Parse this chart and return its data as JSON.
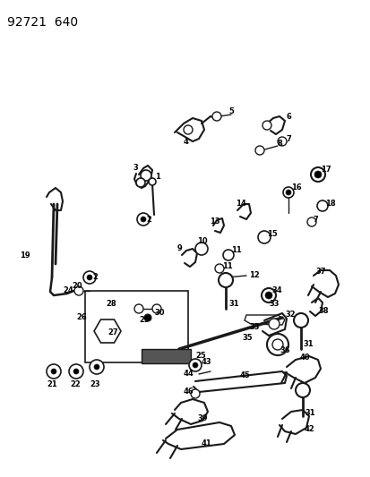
{
  "title": "92721  640",
  "background_color": "#ffffff",
  "line_color": "#1a1a1a",
  "text_color": "#000000",
  "fig_width": 4.14,
  "fig_height": 5.33,
  "dpi": 100
}
